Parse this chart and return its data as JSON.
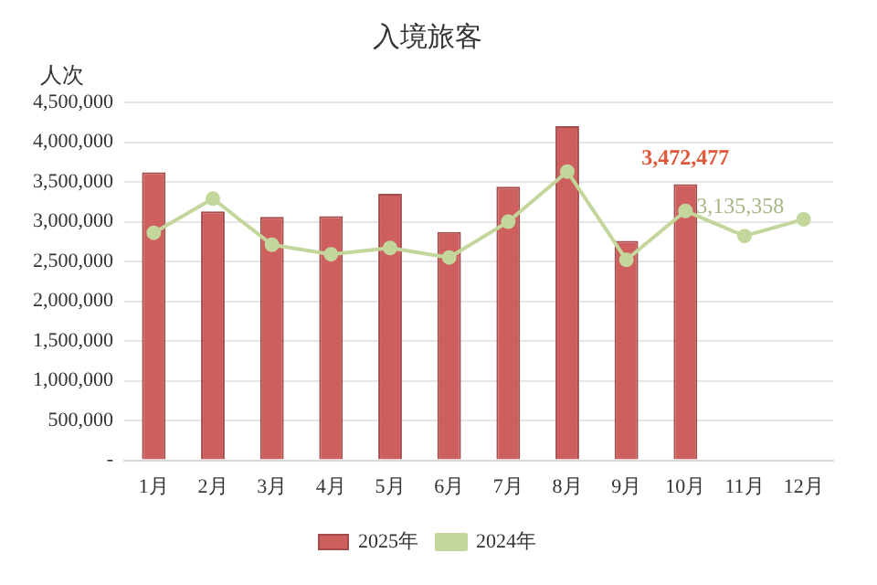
{
  "chart_data": {
    "type": "bar",
    "title": "入境旅客",
    "ylabel": "人次",
    "categories": [
      "1月",
      "2月",
      "3月",
      "4月",
      "5月",
      "6月",
      "7月",
      "8月",
      "9月",
      "10月",
      "11月",
      "12月"
    ],
    "series": [
      {
        "name": "2025年",
        "color": "#cd5f5e",
        "values": [
          3620000,
          3130000,
          3060000,
          3070000,
          3350000,
          2870000,
          3440000,
          4200000,
          2760000,
          3472477,
          null,
          null
        ],
        "value_labels": [
          null,
          null,
          null,
          null,
          null,
          null,
          null,
          null,
          null,
          "3,472,477",
          null,
          null
        ]
      },
      {
        "name": "2024年",
        "type": "line",
        "color": "#c3d69b",
        "marker": "circle",
        "values": [
          2860000,
          3290000,
          2710000,
          2590000,
          2670000,
          2550000,
          3000000,
          3630000,
          2520000,
          3135358,
          2820000,
          3030000
        ],
        "value_labels": [
          null,
          null,
          null,
          null,
          null,
          null,
          null,
          null,
          null,
          "3,135,358",
          null,
          null
        ]
      }
    ],
    "ylim": [
      0,
      4500000
    ],
    "yticks": [
      {
        "value": 0,
        "label": "-"
      },
      {
        "value": 500000,
        "label": "500,000"
      },
      {
        "value": 1000000,
        "label": "1,000,000"
      },
      {
        "value": 1500000,
        "label": "1,500,000"
      },
      {
        "value": 2000000,
        "label": "2,000,000"
      },
      {
        "value": 2500000,
        "label": "2,500,000"
      },
      {
        "value": 3000000,
        "label": "3,000,000"
      },
      {
        "value": 3500000,
        "label": "3,500,000"
      },
      {
        "value": 4000000,
        "label": "4,000,000"
      },
      {
        "value": 4500000,
        "label": "4,500,000"
      }
    ],
    "grid": "y",
    "legend": "bottom"
  }
}
